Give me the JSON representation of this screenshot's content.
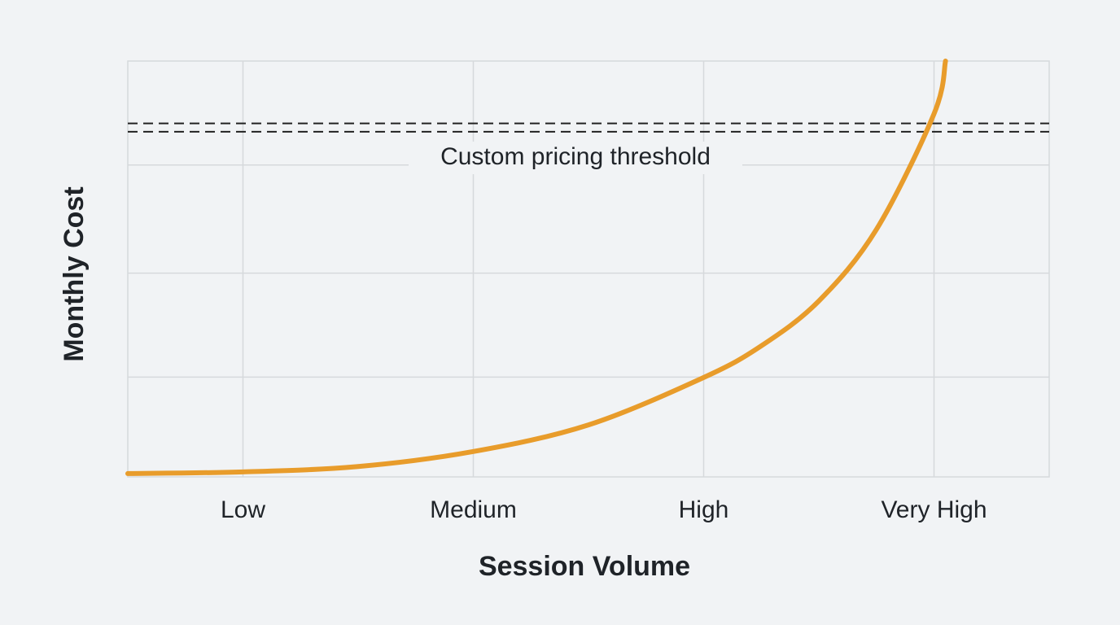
{
  "chart_data": {
    "type": "line",
    "x_label": "Session Volume",
    "y_label": "Monthly Cost",
    "xlim": [
      -0.5,
      3.5
    ],
    "xticks": [
      {
        "value": 0,
        "label": "Low"
      },
      {
        "value": 1,
        "label": "Medium"
      },
      {
        "value": 2,
        "label": "High"
      },
      {
        "value": 3,
        "label": "Very High"
      }
    ],
    "ylim": [
      0,
      100
    ],
    "grid_y": [
      24,
      49,
      75
    ],
    "grid": true,
    "x": [
      -0.5,
      0,
      0.5,
      1,
      1.5,
      2,
      2.25,
      2.5,
      2.75,
      3,
      3.05
    ],
    "series": [
      {
        "color": "#e89c2b",
        "values": [
          0.8,
          1.2,
          2.5,
          6.1,
          12.5,
          23.9,
          31.5,
          42.3,
          59.5,
          87.3,
          100
        ]
      }
    ],
    "threshold": {
      "label": "Custom pricing threshold",
      "values": [
        85,
        83
      ]
    }
  }
}
